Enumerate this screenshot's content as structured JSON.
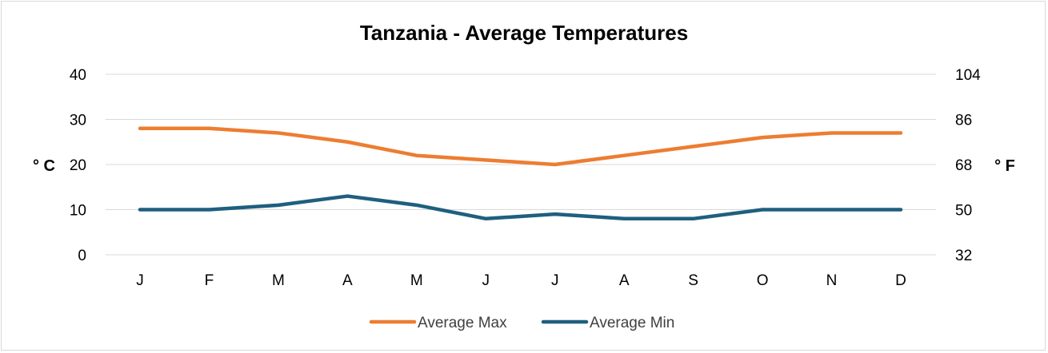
{
  "chart_data": {
    "type": "line",
    "title": "Tanzania - Average Temperatures",
    "categories": [
      "J",
      "F",
      "M",
      "A",
      "M",
      "J",
      "J",
      "A",
      "S",
      "O",
      "N",
      "D"
    ],
    "series": [
      {
        "name": "Average Max",
        "color": "#ED7D31",
        "values": [
          28,
          28,
          27,
          25,
          22,
          21,
          20,
          22,
          24,
          26,
          27,
          27
        ]
      },
      {
        "name": "Average Min",
        "color": "#1F5F7F",
        "values": [
          10,
          10,
          11,
          13,
          11,
          8,
          9,
          8,
          8,
          10,
          10,
          10
        ]
      }
    ],
    "ylabel": "° C",
    "ylim": [
      0,
      40
    ],
    "yticks": [
      "0",
      "10",
      "20",
      "30",
      "40"
    ],
    "y2label": "° F",
    "y2ticks": [
      "32",
      "50",
      "68",
      "86",
      "104"
    ],
    "grid": true,
    "legend": "bottom"
  }
}
